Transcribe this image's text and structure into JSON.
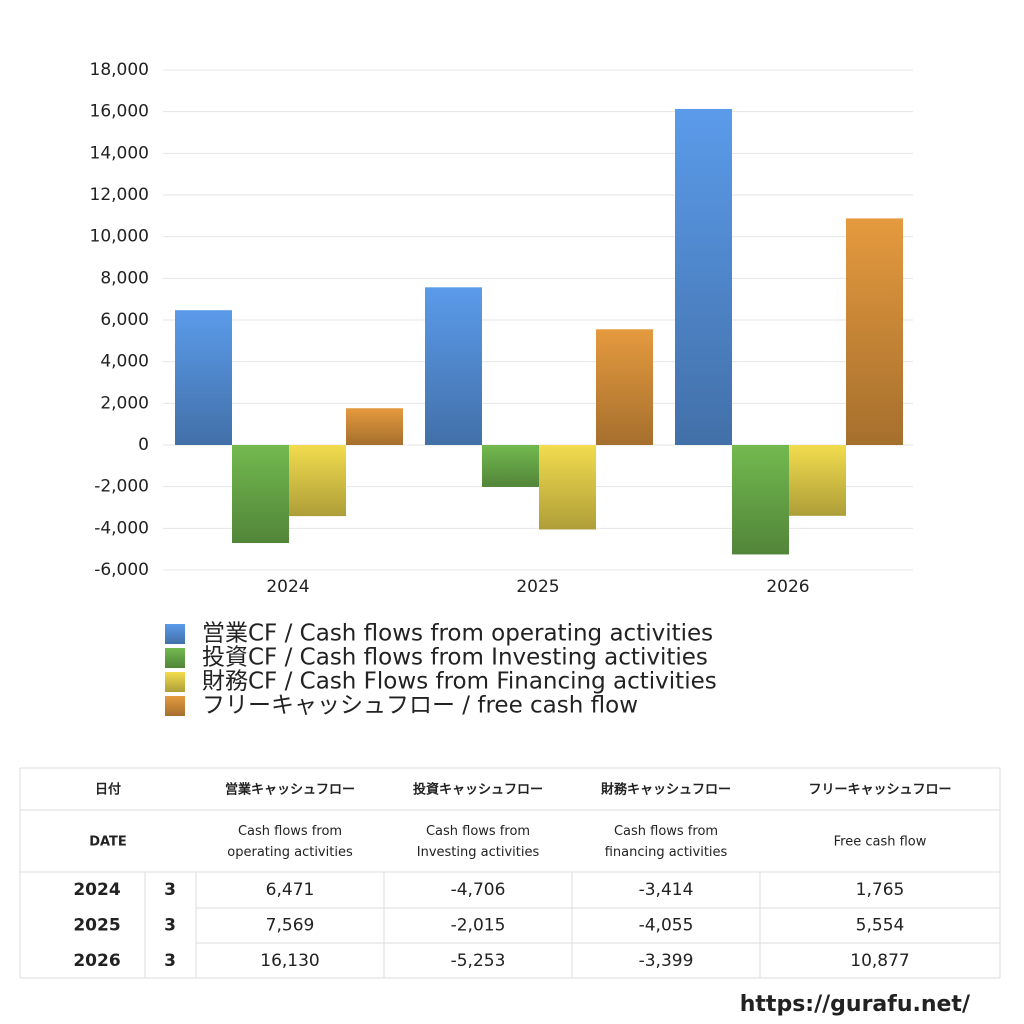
{
  "chart_data": {
    "type": "bar",
    "categories": [
      "2024",
      "2025",
      "2026"
    ],
    "series": [
      {
        "name": "営業CF / Cash flows from operating activities",
        "color": "#5b9bea",
        "values": [
          6471,
          7569,
          16130
        ]
      },
      {
        "name": "投資CF / Cash flows from Investing activities",
        "color": "#72b94f",
        "values": [
          -4706,
          -2015,
          -5253
        ]
      },
      {
        "name": "財務CF / Cash Flows from Financing activities",
        "color": "#f2dc4e",
        "values": [
          -3414,
          -4055,
          -3399
        ]
      },
      {
        "name": "フリーキャッシュフロー / free cash flow",
        "color": "#e59a3e",
        "values": [
          1765,
          5554,
          10877
        ]
      }
    ],
    "ylim": [
      -6000,
      18000
    ],
    "yticks": [
      {
        "value": -6000,
        "label": "-6,000"
      },
      {
        "value": -4000,
        "label": "-4,000"
      },
      {
        "value": -2000,
        "label": "-2,000"
      },
      0,
      {
        "value": 2000,
        "label": "2,000"
      },
      {
        "value": 4000,
        "label": "4,000"
      },
      {
        "value": 6000,
        "label": "6,000"
      },
      {
        "value": 8000,
        "label": "8,000"
      },
      {
        "value": 10000,
        "label": "10,000"
      },
      {
        "value": 12000,
        "label": "12,000"
      },
      {
        "value": 14000,
        "label": "14,000"
      },
      {
        "value": 16000,
        "label": "16,000"
      },
      {
        "value": 18000,
        "label": "18,000"
      }
    ],
    "grid": true
  },
  "table": {
    "header_ja": [
      "日付",
      "営業キャッシュフロー",
      "投資キャッシュフロー",
      "財務キャッシュフロー",
      "フリーキャッシュフロー"
    ],
    "header_en": [
      [
        "DATE"
      ],
      [
        "Cash flows from",
        "operating activities"
      ],
      [
        "Cash flows from",
        "Investing activities"
      ],
      [
        "Cash flows from",
        "financing activities"
      ],
      [
        "Free cash flow"
      ]
    ],
    "rows": [
      [
        "2024",
        "3",
        "6,471",
        "-4,706",
        "-3,414",
        "1,765"
      ],
      [
        "2025",
        "3",
        "7,569",
        "-2,015",
        "-4,055",
        "5,554"
      ],
      [
        "2026",
        "3",
        "16,130",
        "-5,253",
        "-3,399",
        "10,877"
      ]
    ]
  },
  "footer": "https://gurafu.net/"
}
